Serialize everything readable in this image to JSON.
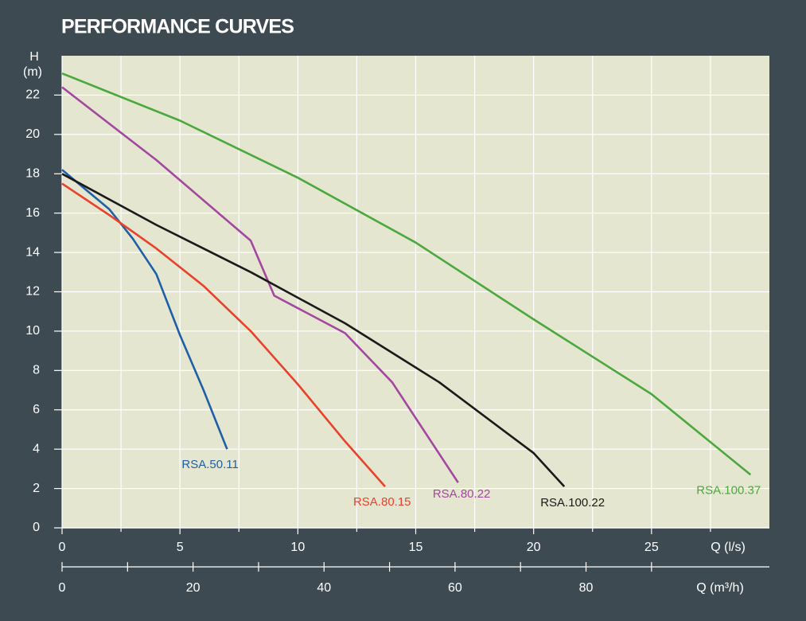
{
  "chart_data": {
    "type": "line",
    "title": "PERFORMANCE CURVES",
    "y_label_top": "H",
    "y_label": "(m)",
    "x_label": "Q (l/s)",
    "x2_label": "Q (m³/h)",
    "xlim": [
      0,
      30
    ],
    "xticks": [
      0,
      5,
      10,
      15,
      20,
      25
    ],
    "xminor_ticks": [
      2.5,
      7.5,
      12.5,
      17.5,
      22.5,
      27.5
    ],
    "x2lim": [
      0,
      108
    ],
    "x2ticks": [
      0,
      20,
      40,
      60,
      80
    ],
    "x2minor_ticks": [
      10,
      30,
      50,
      70,
      90
    ],
    "ylim": [
      0,
      24
    ],
    "yticks": [
      0,
      2,
      4,
      6,
      8,
      10,
      12,
      14,
      16,
      18,
      20,
      22
    ],
    "grid": true,
    "plot_background": "#e4e6cf",
    "series": [
      {
        "name": "RSA.50.11",
        "color": "#1f5fa8",
        "x": [
          0,
          1,
          2,
          3,
          4,
          5,
          6,
          7
        ],
        "values": [
          18.2,
          17.2,
          16.2,
          14.7,
          12.9,
          9.8,
          7.0,
          4.0
        ]
      },
      {
        "name": "RSA.80.15",
        "color": "#e8412c",
        "x": [
          0,
          2,
          4,
          6,
          8,
          10,
          12,
          13.7
        ],
        "values": [
          17.5,
          15.9,
          14.2,
          12.3,
          10.0,
          7.3,
          4.4,
          2.1
        ]
      },
      {
        "name": "RSA.80.22",
        "color": "#a347a0",
        "x": [
          0,
          4,
          8,
          9,
          12,
          14,
          16.8
        ],
        "values": [
          22.4,
          18.7,
          14.6,
          11.8,
          9.9,
          7.4,
          2.3
        ]
      },
      {
        "name": "RSA.100.22",
        "color": "#1a1a1a",
        "x": [
          0,
          4,
          8,
          12,
          16,
          20,
          21.3
        ],
        "values": [
          18.0,
          15.4,
          13.0,
          10.4,
          7.4,
          3.8,
          2.1
        ]
      },
      {
        "name": "RSA.100.37",
        "color": "#4aa83e",
        "x": [
          0,
          5,
          10,
          15,
          20,
          25,
          29.2
        ],
        "values": [
          23.1,
          20.7,
          17.8,
          14.5,
          10.6,
          6.8,
          2.7
        ]
      }
    ]
  }
}
